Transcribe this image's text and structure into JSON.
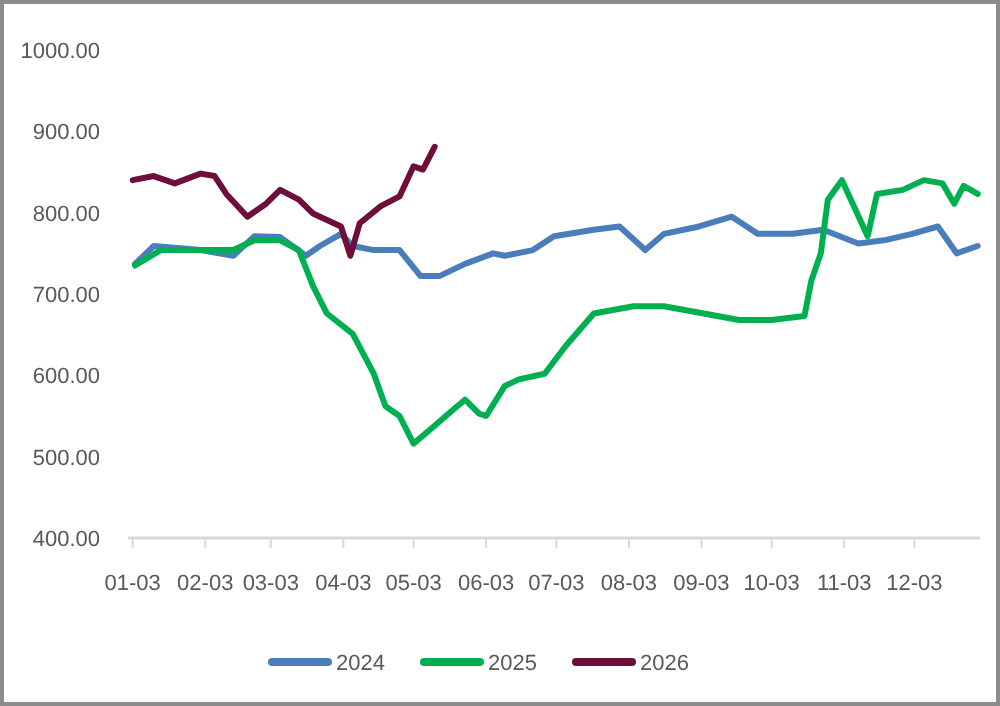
{
  "chart_data": {
    "type": "line",
    "xlim": [
      "--01-01",
      "--12-31"
    ],
    "xticks": [
      {
        "value": "--01-03",
        "label": "01-03"
      },
      {
        "value": "--02-03",
        "label": "02-03"
      },
      {
        "value": "--03-03",
        "label": "03-03"
      },
      {
        "value": "--04-03",
        "label": "04-03"
      },
      {
        "value": "--05-03",
        "label": "05-03"
      },
      {
        "value": "--06-03",
        "label": "06-03"
      },
      {
        "value": "--07-03",
        "label": "07-03"
      },
      {
        "value": "--08-03",
        "label": "08-03"
      },
      {
        "value": "--09-03",
        "label": "09-03"
      },
      {
        "value": "--10-03",
        "label": "10-03"
      },
      {
        "value": "--11-03",
        "label": "11-03"
      },
      {
        "value": "--12-03",
        "label": "12-03"
      }
    ],
    "ylim": [
      400,
      1000
    ],
    "yticks": [
      {
        "value": 400,
        "label": "400.00"
      },
      {
        "value": 500,
        "label": "500.00"
      },
      {
        "value": 600,
        "label": "600.00"
      },
      {
        "value": 700,
        "label": "700.00"
      },
      {
        "value": 800,
        "label": "800.00"
      },
      {
        "value": 900,
        "label": "900.00"
      },
      {
        "value": 1000,
        "label": "1000.00"
      }
    ],
    "grid": false,
    "legend": "bottom",
    "marker": "none",
    "line_style": "solid",
    "series": [
      {
        "name": "2024",
        "color": "#4a7ebb",
        "x": [
          "--01-04",
          "--01-12",
          "--02-01",
          "--02-15",
          "--02-24",
          "--03-07",
          "--03-18",
          "--03-24",
          "--04-02",
          "--04-07",
          "--04-16",
          "--04-27",
          "--05-06",
          "--05-14",
          "--05-25",
          "--06-06",
          "--06-11",
          "--06-23",
          "--07-02",
          "--07-19",
          "--07-30",
          "--08-10",
          "--08-18",
          "--09-02",
          "--09-16",
          "--09-27",
          "--10-12",
          "--10-25",
          "--11-09",
          "--11-20",
          "--12-02",
          "--12-13",
          "--12-21",
          "--12-30"
        ],
        "values": [
          737,
          759,
          754,
          747,
          771,
          770,
          747,
          759,
          774,
          759,
          754,
          754,
          722,
          722,
          737,
          750,
          747,
          754,
          771,
          779,
          783,
          754,
          774,
          783,
          795,
          774,
          774,
          779,
          762,
          766,
          774,
          783,
          750,
          759
        ]
      },
      {
        "name": "2025",
        "color": "#00b050",
        "x": [
          "--01-04",
          "--01-15",
          "--02-01",
          "--02-15",
          "--02-24",
          "--03-07",
          "--03-15",
          "--03-21",
          "--03-27",
          "--04-07",
          "--04-16",
          "--04-21",
          "--04-27",
          "--05-03",
          "--05-12",
          "--05-20",
          "--05-25",
          "--05-31",
          "--06-03",
          "--06-11",
          "--06-17",
          "--06-28",
          "--07-07",
          "--07-19",
          "--08-05",
          "--08-18",
          "--09-04",
          "--09-19",
          "--10-03",
          "--10-17",
          "--10-20",
          "--10-24",
          "--10-27",
          "--11-02",
          "--11-13",
          "--11-17",
          "--11-28",
          "--12-07",
          "--12-15",
          "--12-20",
          "--12-24",
          "--12-30"
        ],
        "values": [
          735,
          754,
          754,
          754,
          766,
          766,
          754,
          710,
          676,
          651,
          602,
          562,
          550,
          516,
          538,
          558,
          570,
          553,
          550,
          587,
          595,
          602,
          636,
          676,
          685,
          685,
          676,
          668,
          668,
          673,
          717,
          750,
          816,
          840,
          771,
          823,
          828,
          840,
          836,
          811,
          833,
          823
        ]
      },
      {
        "name": "2026",
        "color": "#6e0e3a",
        "x": [
          "--01-03",
          "--01-12",
          "--01-21",
          "--02-01",
          "--02-07",
          "--02-12",
          "--02-21",
          "--03-01",
          "--03-07",
          "--03-15",
          "--03-21",
          "--03-27",
          "--04-02",
          "--04-06",
          "--04-10",
          "--04-19",
          "--04-27",
          "--05-03",
          "--05-07",
          "--05-12"
        ],
        "values": [
          840,
          845,
          836,
          848,
          845,
          823,
          795,
          811,
          828,
          816,
          799,
          791,
          783,
          747,
          787,
          808,
          820,
          857,
          853,
          881
        ]
      }
    ]
  }
}
